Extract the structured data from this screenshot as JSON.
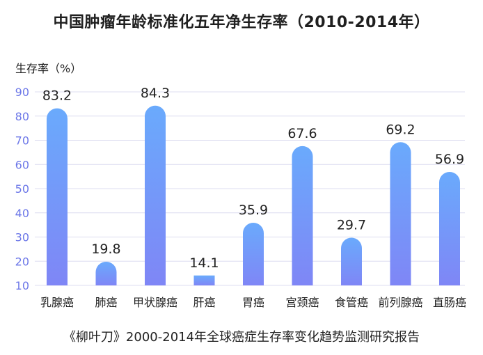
{
  "title": "中国肿瘤年龄标准化五年净生存率（2010-2014年）",
  "caption": "《柳叶刀》2000-2014年全球癌症生存率变化趋势监测研究报告",
  "colors": {
    "bar_top": "#6aaafc",
    "bar_bottom": "#7f86f6",
    "tick_label": "#6d78e8",
    "grid": "#dcdcf0",
    "text": "#222222"
  },
  "chart_data": {
    "type": "bar",
    "title": "中国肿瘤年龄标准化五年净生存率（2010-2014年）",
    "ylabel": "生存率（%）",
    "xlabel": "",
    "categories": [
      "乳腺癌",
      "肺癌",
      "甲状腺癌",
      "肝癌",
      "胃癌",
      "宫颈癌",
      "食管癌",
      "前列腺癌",
      "直肠癌"
    ],
    "values": [
      83.2,
      19.8,
      84.3,
      14.1,
      35.9,
      67.6,
      29.7,
      69.2,
      56.9
    ],
    "value_labels": [
      "83.2",
      "19.8",
      "84.3",
      "14.1",
      "35.9",
      "67.6",
      "29.7",
      "69.2",
      "56.9"
    ],
    "ylim": [
      10,
      90
    ],
    "yticks": [
      "10",
      "20",
      "30",
      "40",
      "50",
      "60",
      "70",
      "80",
      "90"
    ],
    "grid": true
  }
}
